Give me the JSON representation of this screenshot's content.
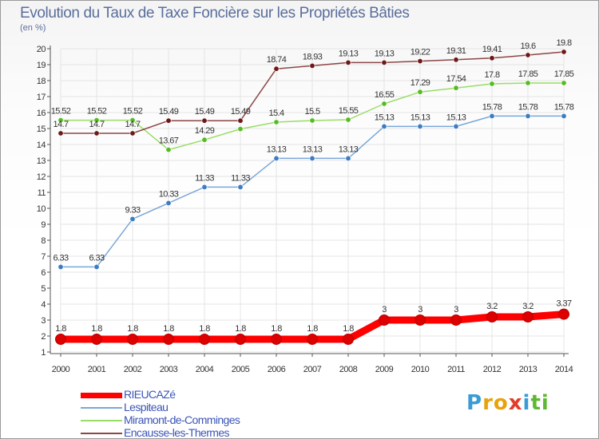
{
  "chart_data": {
    "type": "line",
    "title": "Evolution du Taux de Taxe Foncière sur les Propriétés Bâties",
    "ylabel": "(en %)",
    "xlabel": "",
    "ylim": [
      1,
      20
    ],
    "yticks": [
      "1",
      "2",
      "3",
      "4",
      "5",
      "6",
      "7",
      "8",
      "9",
      "10",
      "11",
      "12",
      "13",
      "14",
      "15",
      "16",
      "17",
      "18",
      "19",
      "20"
    ],
    "categories": [
      "2000",
      "2001",
      "2002",
      "2003",
      "2004",
      "2005",
      "2006",
      "2007",
      "2008",
      "2009",
      "2010",
      "2011",
      "2012",
      "2013",
      "2014"
    ],
    "series": [
      {
        "name": "RIEUCAZé",
        "color": "#ff0000",
        "marker": "#dd0000",
        "values": [
          1.8,
          1.8,
          1.8,
          1.8,
          1.8,
          1.8,
          1.8,
          1.8,
          1.8,
          3,
          3,
          3,
          3.2,
          3.2,
          3.37
        ],
        "labels": [
          "1.8",
          "1.8",
          "1.8",
          "1.8",
          "1.8",
          "1.8",
          "1.8",
          "1.8",
          "1.8",
          "3",
          "3",
          "3",
          "3.2",
          "3.2",
          "3.37"
        ]
      },
      {
        "name": "Lespiteau",
        "color": "#7aa7d8",
        "marker": "#3c7cc4",
        "values": [
          6.33,
          6.33,
          9.33,
          10.33,
          11.33,
          11.33,
          13.13,
          13.13,
          13.13,
          15.13,
          15.13,
          15.13,
          15.78,
          15.78,
          15.78
        ],
        "labels": [
          "6.33",
          "6.33",
          "9.33",
          "10.33",
          "11.33",
          "11.33",
          "13.13",
          "13.13",
          "13.13",
          "15.13",
          "15.13",
          "15.13",
          "15.78",
          "15.78",
          "15.78"
        ]
      },
      {
        "name": "Miramont-de-Comminges",
        "color": "#99dd66",
        "marker": "#55bb22",
        "values": [
          15.52,
          15.52,
          15.52,
          13.67,
          14.29,
          14.97,
          15.4,
          15.5,
          15.55,
          16.55,
          17.29,
          17.54,
          17.8,
          17.85,
          17.85
        ],
        "labels": [
          "15.52",
          "15.52",
          "15.52",
          "13.67",
          "14.29",
          "",
          "15.4",
          "15.5",
          "15.55",
          "16.55",
          "17.29",
          "17.54",
          "17.8",
          "17.85",
          "17.85"
        ]
      },
      {
        "name": "Encausse-les-Thermes",
        "color": "#8c4646",
        "marker": "#6e1818",
        "values": [
          14.7,
          14.7,
          14.7,
          15.49,
          15.49,
          15.49,
          18.74,
          18.93,
          19.13,
          19.13,
          19.22,
          19.31,
          19.41,
          19.6,
          19.8
        ],
        "labels": [
          "14.7",
          "14.7",
          "14.7",
          "15.49",
          "15.49",
          "15.49",
          "18.74",
          "18.93",
          "19.13",
          "19.13",
          "19.22",
          "19.31",
          "19.41",
          "19.6",
          "19.8"
        ]
      }
    ]
  },
  "legend": {
    "items": [
      "RIEUCAZé",
      "Lespiteau",
      "Miramont-de-Comminges",
      "Encausse-les-Thermes"
    ],
    "colors": [
      "#ff0000",
      "#7aa7d8",
      "#99dd66",
      "#8c4646"
    ]
  },
  "logo": {
    "letters": [
      "P",
      "r",
      "o",
      "x",
      "i",
      "t",
      "i"
    ],
    "colors": [
      "#3a9bd5",
      "#e8a20c",
      "#e8a20c",
      "#e23c2a",
      "#3a9bd5",
      "#5db832",
      "#5db832"
    ]
  }
}
